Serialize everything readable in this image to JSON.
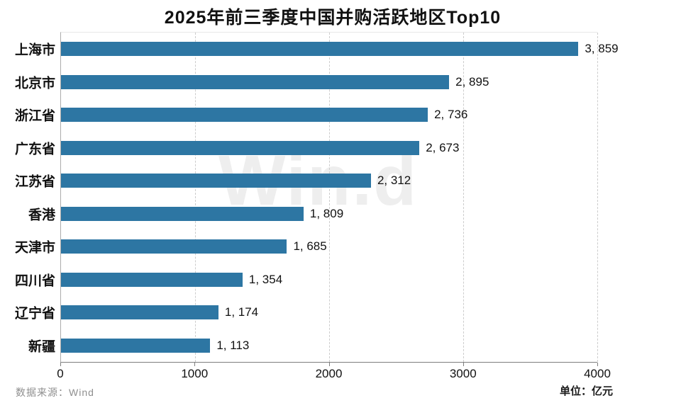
{
  "title": "2025年前三季度中国并购活跃地区Top10",
  "watermark": "Win.d",
  "footer": {
    "source": "数据来源：Wind",
    "unit": "单位：亿元"
  },
  "colors": {
    "bar": "#2d76a3",
    "gridline": "#cccccc",
    "axis": "#7d7d7d",
    "watermark": "#eeeeee",
    "source_text": "#8f8f8f"
  },
  "chart_data": {
    "type": "bar",
    "orientation": "horizontal",
    "title": "2025年前三季度中国并购活跃地区Top10",
    "categories": [
      "上海市",
      "北京市",
      "浙江省",
      "广东省",
      "江苏省",
      "香港",
      "天津市",
      "四川省",
      "辽宁省",
      "新疆"
    ],
    "values": [
      3859,
      2895,
      2736,
      2673,
      2312,
      1809,
      1685,
      1354,
      1174,
      1113
    ],
    "value_labels": [
      "3, 859",
      "2, 895",
      "2, 736",
      "2, 673",
      "2, 312",
      "1, 809",
      "1, 685",
      "1, 354",
      "1, 174",
      "1, 113"
    ],
    "xlabel": "",
    "ylabel": "",
    "unit": "亿元",
    "xlim": [
      0,
      4000
    ],
    "x_ticks": [
      "0",
      "1000",
      "2000",
      "3000",
      "4000"
    ],
    "grid": "vertical-dashed",
    "legend": "none",
    "source": "Wind"
  }
}
